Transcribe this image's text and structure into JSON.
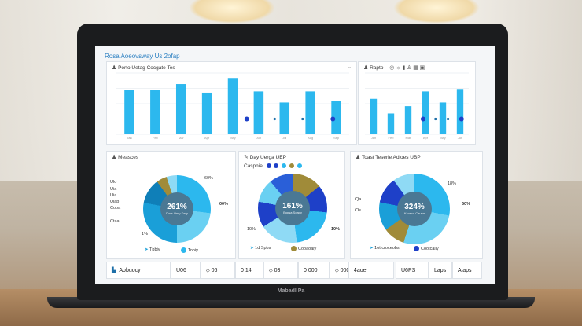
{
  "app": {
    "title": "Rosa Aoeovsway Us 2ofap",
    "brand": "Mabadl Pa"
  },
  "top_left": {
    "title": "Porto Uetag Cocgate Tes",
    "chart_data": {
      "type": "bar",
      "categories": [
        "Jan",
        "Feb",
        "Mar",
        "Apr",
        "May",
        "Jun",
        "Jul",
        "Aug",
        "Sep"
      ],
      "values": [
        72,
        72,
        82,
        68,
        92,
        70,
        52,
        70,
        55
      ],
      "overlay_line_y": 25
    }
  },
  "top_right": {
    "title": "Rapto",
    "toolbar_icons": [
      "target",
      "bulb",
      "signal",
      "user",
      "calendar",
      "save"
    ],
    "chart_data": {
      "type": "bar",
      "categories": [
        "Jan",
        "Feb",
        "Mar",
        "Apr",
        "May",
        "Jun"
      ],
      "values": [
        58,
        34,
        46,
        70,
        52,
        74
      ],
      "overlay_line_y": 25,
      "ylim": [
        0,
        100
      ]
    }
  },
  "panel1": {
    "title": "Measces",
    "center_value": "261%",
    "center_caption": "Donr Onry Daty",
    "right_label": "00%",
    "top_label": "60%",
    "left_labels": [
      "Ulo",
      "Uia",
      "Uia",
      "Uiap",
      "Cooa",
      "Ctaa"
    ],
    "bottom_left_label": "1%",
    "legend": [
      "Tpbiy",
      "Topiy"
    ],
    "chart_data": {
      "type": "pie",
      "values": [
        27,
        23,
        28,
        12,
        5,
        5
      ]
    }
  },
  "panel2": {
    "title": "Day Uerga UEP",
    "subtitle": "Caspnie",
    "center_value": "161%",
    "center_caption": "Bopsa Soagy",
    "right_label": "10%",
    "left_label": "10%",
    "legend": [
      "1d Spbs",
      "Cooaoaly"
    ],
    "chart_data": {
      "type": "pie",
      "values": [
        21,
        18,
        14,
        12,
        12,
        11,
        12
      ]
    }
  },
  "panel3": {
    "title": "Toast Teserle Adloes UBP",
    "center_value": "324%",
    "center_caption": "Kcosca Ceuna",
    "right_label": "60%",
    "labels_right": [
      "18%"
    ],
    "labels_left": [
      "Qa",
      "Os"
    ],
    "legend": [
      "1ot croceobs",
      "Cootcaliy"
    ],
    "chart_data": {
      "type": "pie",
      "values": [
        28,
        27,
        10,
        13,
        12,
        10
      ]
    }
  },
  "stats": [
    {
      "label": "Aobuocy"
    },
    {
      "label": "U06",
      "value": "06"
    },
    {
      "label": "0 14",
      "value": "03"
    },
    {
      "label": "0 000",
      "value": "000"
    },
    {
      "label": "4aoe"
    },
    {
      "label": "U6PS"
    },
    {
      "label": "Laps"
    },
    {
      "label": "A aps"
    }
  ],
  "colors": {
    "bar": "#2cb8ee",
    "dark_blue": "#1e40c8",
    "olive": "#a08b39",
    "accent": "#2a7fc1"
  }
}
